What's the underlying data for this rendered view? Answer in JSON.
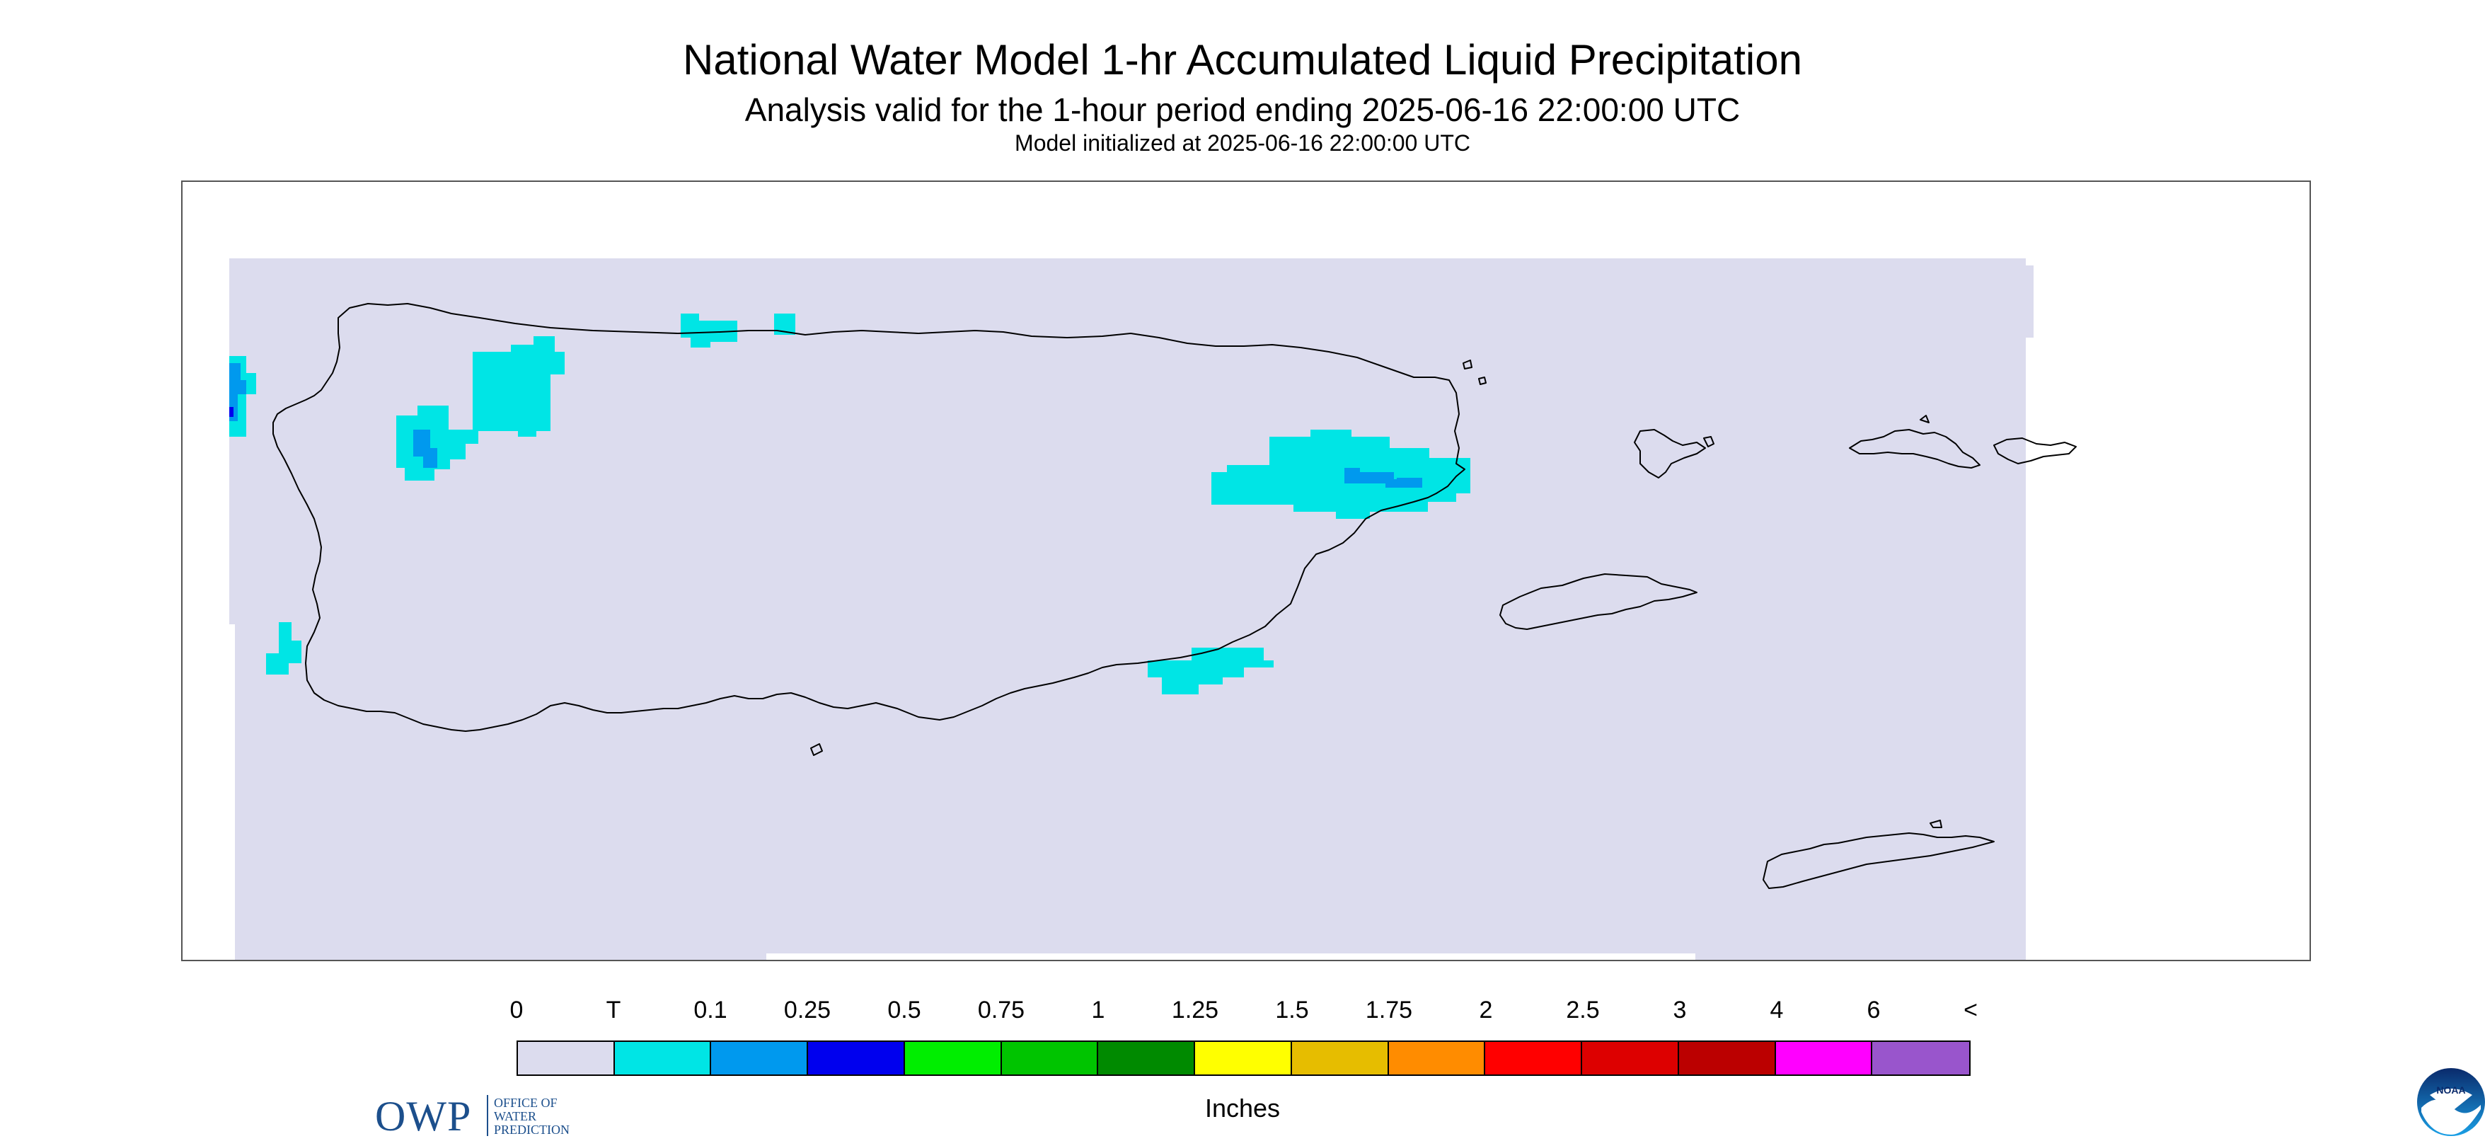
{
  "header": {
    "title": "National Water Model 1-hr Accumulated Liquid Precipitation",
    "subtitle": "Analysis valid for the 1-hour period ending 2025-06-16 22:00:00 UTC",
    "init": "Model initialized at 2025-06-16 22:00:00 UTC"
  },
  "logos": {
    "owp_abbrev": "OWP",
    "owp_line1": "OFFICE OF",
    "owp_line2": "WATER",
    "owp_line3": "PREDICTION",
    "noaa": "NOAA"
  },
  "legend": {
    "units": "Inches",
    "labels": [
      "0",
      "T",
      "0.1",
      "0.25",
      "0.5",
      "0.75",
      "1",
      "1.25",
      "1.5",
      "1.75",
      "2",
      "2.5",
      "3",
      "4",
      "6",
      "<"
    ],
    "colors": [
      "#dcdcee",
      "#00e5e5",
      "#0099ee",
      "#0000ee",
      "#00ee00",
      "#00c400",
      "#008a00",
      "#ffff00",
      "#e6bd00",
      "#ff8c00",
      "#ff0000",
      "#dd0000",
      "#bb0000",
      "#ff00ff",
      "#9955cc"
    ]
  },
  "map": {
    "background": "#dcdcee",
    "regions": [
      "Puerto Rico",
      "Vieques",
      "Culebra",
      "St. Thomas",
      "St. John",
      "St. Croix"
    ],
    "precip_areas": [
      {
        "area": "northwest coast",
        "category": "T"
      },
      {
        "area": "west",
        "category": "0.1"
      },
      {
        "area": "northeast (Fajardo)",
        "category": "0.1"
      },
      {
        "area": "southeast",
        "category": "T"
      },
      {
        "area": "north coast",
        "category": "T"
      }
    ]
  }
}
